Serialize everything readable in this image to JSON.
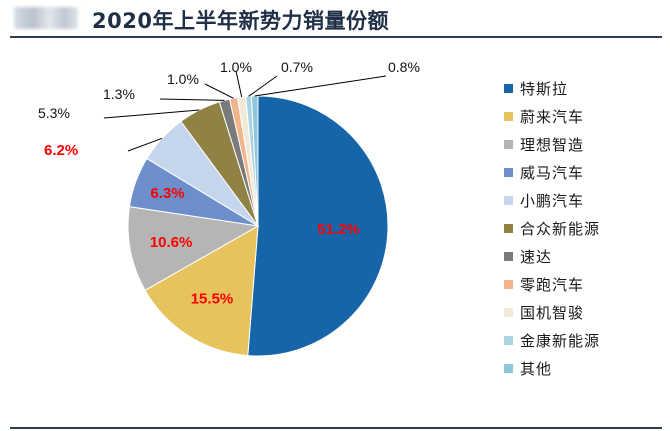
{
  "header": {
    "title": "2020年上半年新势力销量份额"
  },
  "chart_data": {
    "type": "pie",
    "title": "2020年上半年新势力销量份额",
    "unit": "%",
    "start_angle": "12 o'clock",
    "direction": "clockwise",
    "slices": [
      {
        "name": "特斯拉",
        "value": 51.2,
        "label": "51.2%",
        "color": "#1565a8"
      },
      {
        "name": "蔚来汽车",
        "value": 15.5,
        "label": "15.5%",
        "color": "#e6c35c"
      },
      {
        "name": "理想智造",
        "value": 10.6,
        "label": "10.6%",
        "color": "#b5b5b5"
      },
      {
        "name": "威马汽车",
        "value": 6.3,
        "label": "6.3%",
        "color": "#6c8fcb"
      },
      {
        "name": "小鹏汽车",
        "value": 6.2,
        "label": "6.2%",
        "color": "#c5d6ec"
      },
      {
        "name": "合众新能源",
        "value": 5.3,
        "label": "5.3%",
        "color": "#8f8244"
      },
      {
        "name": "速达",
        "value": 1.3,
        "label": "1.3%",
        "color": "#7a7a7a"
      },
      {
        "name": "零跑汽车",
        "value": 1.0,
        "label": "1.0%",
        "color": "#f2b48a"
      },
      {
        "name": "国机智骏",
        "value": 1.0,
        "label": "1.0%",
        "color": "#f1ead7"
      },
      {
        "name": "金康新能源",
        "value": 0.7,
        "label": "0.7%",
        "color": "#a9d4e3"
      },
      {
        "name": "其他",
        "value": 0.8,
        "label": "0.8%",
        "color": "#8fc6dc"
      }
    ],
    "legend_position": "right"
  }
}
